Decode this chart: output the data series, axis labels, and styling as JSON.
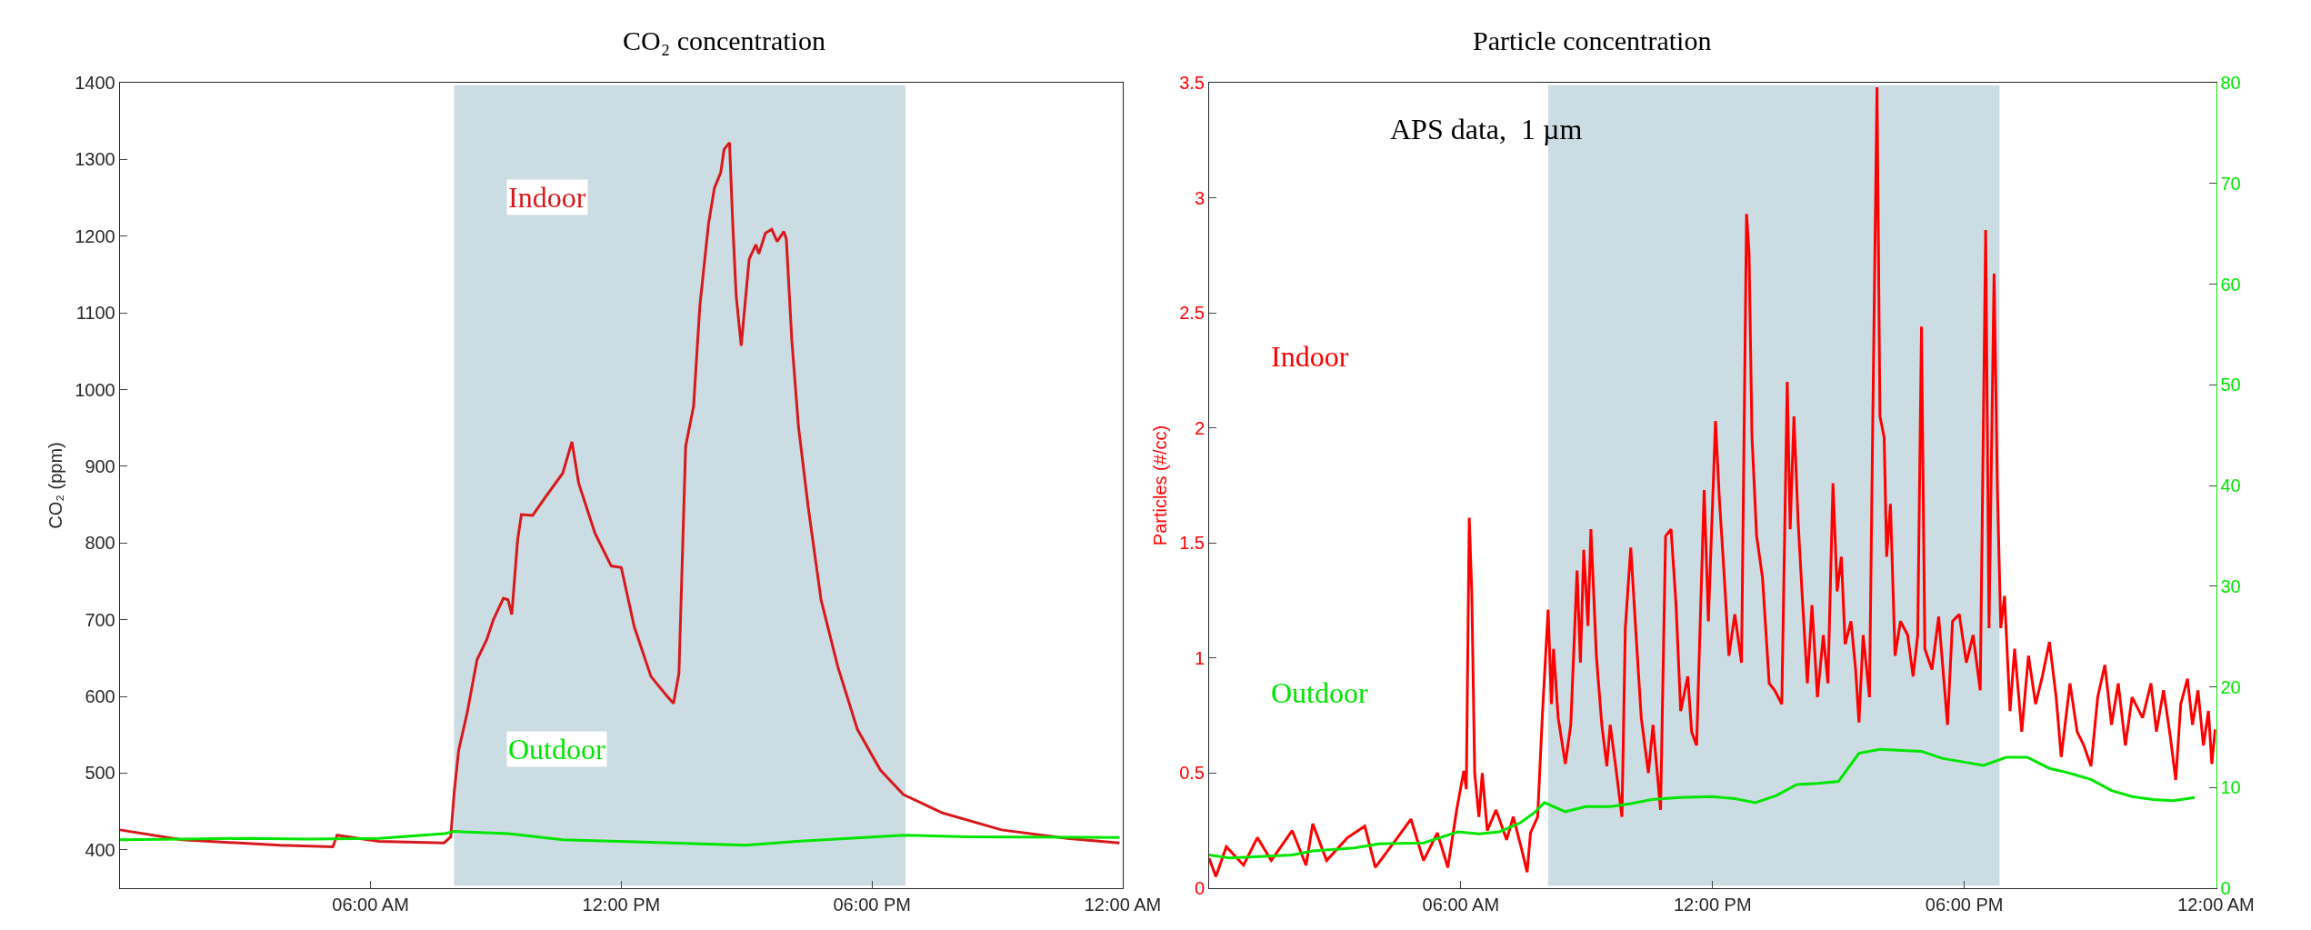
{
  "chart_data": [
    {
      "type": "line",
      "title": "CO₂ concentration",
      "ylabel": "CO₂ (ppm)",
      "xlim": [
        0,
        24
      ],
      "xticks": [
        {
          "value": 6,
          "label": "06:00 AM"
        },
        {
          "value": 12,
          "label": "12:00 PM"
        },
        {
          "value": 18,
          "label": "06:00 PM"
        },
        {
          "value": 24,
          "label": "12:00 AM"
        }
      ],
      "ylim": [
        350,
        1400
      ],
      "yticks": [
        400,
        500,
        600,
        700,
        800,
        900,
        1000,
        1100,
        1200,
        1300,
        1400
      ],
      "grid": false,
      "marker": "none",
      "line_style": "solid",
      "bands": [
        {
          "axis": "x",
          "from": 8.0,
          "to": 18.8,
          "color": "#ccdce3"
        }
      ],
      "series": [
        {
          "name": "Indoor",
          "color": "#d7191c",
          "x": [
            0,
            1.49,
            3.84,
            5.1,
            5.2,
            6.2,
            7.76,
            7.92,
            8.0,
            8.11,
            8.31,
            8.55,
            8.78,
            8.94,
            9.18,
            9.29,
            9.38,
            9.52,
            9.61,
            9.88,
            10.2,
            10.6,
            10.82,
            10.98,
            11.37,
            11.76,
            12.0,
            12.31,
            12.71,
            13.1,
            13.25,
            13.38,
            13.54,
            13.73,
            13.88,
            14.09,
            14.23,
            14.38,
            14.46,
            14.59,
            14.67,
            14.75,
            14.87,
            15.06,
            15.22,
            15.29,
            15.45,
            15.6,
            15.73,
            15.89,
            15.95,
            16.08,
            16.24,
            16.47,
            16.78,
            17.18,
            17.65,
            18.2,
            18.75,
            19.69,
            21.1,
            22.67,
            23.92
          ],
          "values": [
            426,
            413,
            406,
            404,
            419,
            411,
            409,
            417,
            474,
            530,
            578,
            648,
            674,
            700,
            728,
            726,
            707,
            804,
            837,
            836,
            861,
            891,
            932,
            878,
            813,
            770,
            768,
            691,
            626,
            600,
            591,
            630,
            926,
            978,
            1109,
            1217,
            1263,
            1283,
            1313,
            1322,
            1213,
            1122,
            1057,
            1170,
            1189,
            1177,
            1204,
            1209,
            1193,
            1206,
            1196,
            1065,
            952,
            848,
            726,
            639,
            557,
            504,
            472,
            448,
            426,
            415,
            409
          ]
        },
        {
          "name": "Outdoor",
          "color": "#00e600",
          "x": [
            0,
            1.5,
            3.1,
            4.5,
            6.2,
            7.76,
            8.0,
            9.3,
            10.6,
            12.5,
            14.98,
            16.2,
            18.75,
            20.3,
            23.92
          ],
          "values": [
            413,
            414,
            415,
            414,
            415,
            421,
            424,
            421,
            413,
            410,
            406,
            411,
            419,
            417,
            416
          ]
        }
      ]
    },
    {
      "type": "line",
      "title": "Particle concentration",
      "ylabel": "Particles (#/cc)",
      "xlim": [
        0,
        24
      ],
      "xticks": [
        {
          "value": 6,
          "label": "06:00 AM"
        },
        {
          "value": 12,
          "label": "12:00 PM"
        },
        {
          "value": 18,
          "label": "06:00 PM"
        },
        {
          "value": 24,
          "label": "12:00 AM"
        }
      ],
      "ylim": [
        0,
        3.5
      ],
      "yticks": [
        0,
        0.5,
        1,
        1.5,
        2,
        2.5,
        3,
        3.5
      ],
      "y2lim": [
        0,
        80
      ],
      "y2ticks": [
        0,
        10,
        20,
        30,
        40,
        50,
        60,
        70,
        80
      ],
      "grid": false,
      "marker": "none",
      "line_style": "solid",
      "annotations": [
        "APS data,  1 µm"
      ],
      "bands": [
        {
          "axis": "x",
          "from": 8.08,
          "to": 18.84,
          "color": "#ccdce3"
        }
      ],
      "series": [
        {
          "name": "Indoor",
          "color": "#ff0000",
          "x": [
            0,
            0.16,
            0.41,
            0.82,
            1.15,
            1.48,
            1.98,
            2.31,
            2.47,
            2.8,
            3.3,
            3.71,
            3.96,
            4.45,
            4.81,
            5.11,
            5.44,
            5.69,
            5.9,
            6.07,
            6.13,
            6.2,
            6.26,
            6.33,
            6.43,
            6.51,
            6.63,
            6.84,
            7.09,
            7.25,
            7.42,
            7.58,
            7.66,
            7.83,
            7.94,
            8.08,
            8.16,
            8.21,
            8.32,
            8.49,
            8.62,
            8.77,
            8.85,
            8.93,
            9.03,
            9.1,
            9.23,
            9.36,
            9.48,
            9.56,
            9.69,
            9.84,
            9.92,
            10.05,
            10.19,
            10.3,
            10.47,
            10.58,
            10.76,
            10.88,
            11.01,
            11.13,
            11.24,
            11.41,
            11.5,
            11.62,
            11.7,
            11.8,
            11.9,
            12.07,
            12.16,
            12.28,
            12.39,
            12.53,
            12.69,
            12.81,
            12.87,
            12.94,
            13.05,
            13.19,
            13.35,
            13.48,
            13.65,
            13.78,
            13.85,
            13.94,
            14.04,
            14.14,
            14.26,
            14.37,
            14.5,
            14.64,
            14.75,
            14.87,
            14.97,
            15.07,
            15.16,
            15.3,
            15.41,
            15.49,
            15.59,
            15.74,
            15.82,
            15.92,
            15.99,
            16.09,
            16.15,
            16.24,
            16.35,
            16.48,
            16.65,
            16.78,
            16.89,
            16.98,
            17.06,
            17.23,
            17.39,
            17.6,
            17.72,
            17.88,
            18.05,
            18.21,
            18.38,
            18.51,
            18.59,
            18.71,
            18.79,
            18.87,
            18.96,
            19.09,
            19.2,
            19.37,
            19.53,
            19.7,
            19.86,
            20.03,
            20.19,
            20.31,
            20.52,
            20.69,
            20.85,
            21.02,
            21.18,
            21.35,
            21.51,
            21.67,
            21.84,
            22.0,
            22.25,
            22.45,
            22.58,
            22.75,
            22.91,
            23.04,
            23.16,
            23.32,
            23.44,
            23.57,
            23.7,
            23.82,
            23.9,
            23.98
          ],
          "values": [
            0.13,
            0.05,
            0.18,
            0.1,
            0.22,
            0.12,
            0.25,
            0.1,
            0.28,
            0.12,
            0.22,
            0.27,
            0.09,
            0.21,
            0.3,
            0.12,
            0.24,
            0.09,
            0.34,
            0.51,
            0.43,
            1.61,
            1.29,
            0.5,
            0.31,
            0.5,
            0.25,
            0.34,
            0.21,
            0.31,
            0.19,
            0.07,
            0.24,
            0.31,
            0.74,
            1.21,
            0.8,
            1.04,
            0.74,
            0.54,
            0.71,
            1.38,
            0.98,
            1.47,
            1.14,
            1.56,
            1.01,
            0.71,
            0.53,
            0.71,
            0.53,
            0.31,
            1.13,
            1.48,
            1.06,
            0.74,
            0.5,
            0.71,
            0.34,
            1.53,
            1.56,
            1.23,
            0.77,
            0.92,
            0.68,
            0.62,
            1.12,
            1.73,
            1.16,
            2.03,
            1.7,
            1.35,
            1.01,
            1.19,
            0.98,
            2.93,
            2.76,
            1.96,
            1.53,
            1.35,
            0.89,
            0.86,
            0.8,
            2.2,
            1.56,
            2.05,
            1.59,
            1.26,
            0.89,
            1.23,
            0.83,
            1.1,
            0.89,
            1.76,
            1.29,
            1.44,
            1.06,
            1.16,
            0.95,
            0.72,
            1.1,
            0.83,
            2.05,
            3.48,
            2.05,
            1.96,
            1.44,
            1.67,
            1.01,
            1.16,
            1.1,
            0.92,
            1.1,
            2.44,
            1.04,
            0.95,
            1.18,
            0.71,
            1.16,
            1.19,
            0.98,
            1.1,
            0.86,
            2.86,
            1.13,
            2.67,
            1.73,
            1.13,
            1.27,
            0.77,
            1.04,
            0.68,
            1.01,
            0.8,
            0.92,
            1.07,
            0.83,
            0.57,
            0.89,
            0.68,
            0.62,
            0.53,
            0.83,
            0.97,
            0.71,
            0.89,
            0.62,
            0.83,
            0.74,
            0.89,
            0.68,
            0.86,
            0.66,
            0.47,
            0.8,
            0.91,
            0.71,
            0.86,
            0.62,
            0.77,
            0.54,
            0.69
          ]
        },
        {
          "name": "Outdoor",
          "color": "#00e600",
          "axis": "y2",
          "x": [
            0,
            0.49,
            1.98,
            2.47,
            3.46,
            4.04,
            5.11,
            5.93,
            6.43,
            6.92,
            7.42,
            7.75,
            7.99,
            8.49,
            8.98,
            9.56,
            10.05,
            10.55,
            11.21,
            11.98,
            12.53,
            13.02,
            13.52,
            14.01,
            14.5,
            15.0,
            15.49,
            15.99,
            16.98,
            17.47,
            18.46,
            19.0,
            19.5,
            20.03,
            20.44,
            21.02,
            21.51,
            22.0,
            22.5,
            22.99,
            23.49
          ],
          "values": [
            3.3,
            3.0,
            3.3,
            3.7,
            4.0,
            4.4,
            4.5,
            5.6,
            5.4,
            5.6,
            6.5,
            7.5,
            8.5,
            7.6,
            8.1,
            8.1,
            8.4,
            8.8,
            9.0,
            9.1,
            8.9,
            8.5,
            9.2,
            10.3,
            10.4,
            10.6,
            13.4,
            13.8,
            13.6,
            12.9,
            12.2,
            13.0,
            13.0,
            11.9,
            11.5,
            10.8,
            9.7,
            9.1,
            8.8,
            8.7,
            9.0
          ]
        }
      ]
    }
  ]
}
